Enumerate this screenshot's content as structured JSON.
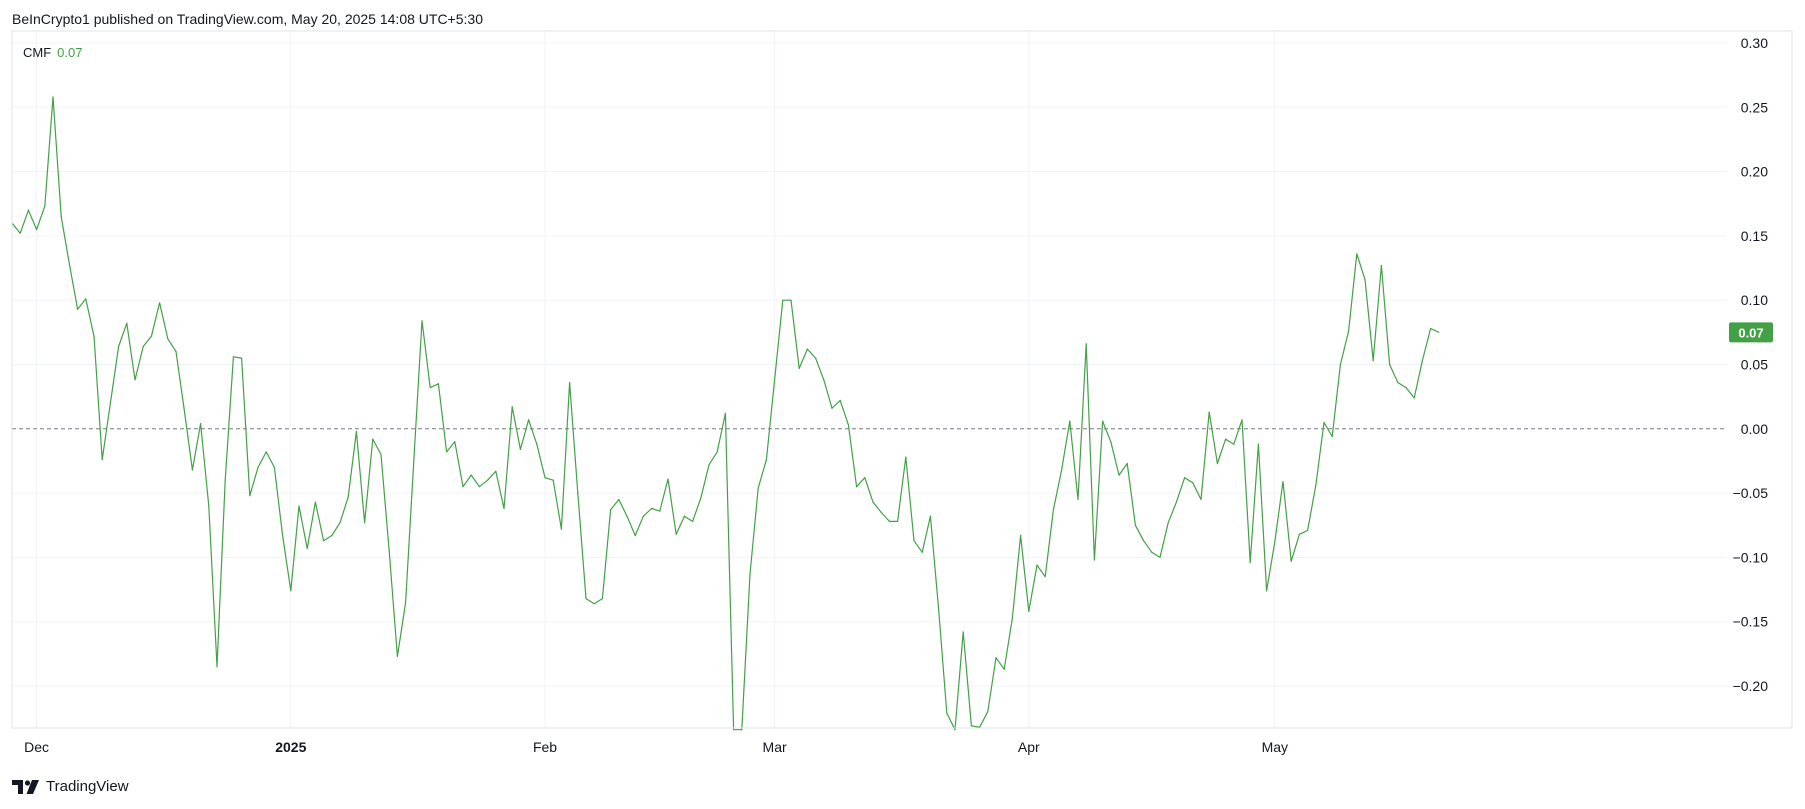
{
  "header": {
    "published_text": "BeInCrypto1 published on TradingView.com, May 20, 2025 14:08 UTC+5:30"
  },
  "legend": {
    "indicator_name": "CMF",
    "indicator_value": "0.07"
  },
  "footer": {
    "brand": "TradingView",
    "logo_icon": "tradingview-logo-icon"
  },
  "colors": {
    "series": "#43a047",
    "badge_bg": "#43a047",
    "grid": "#f0f3fa",
    "zero_line": "#787b86",
    "axis_text": "#131722"
  },
  "chart_data": {
    "type": "line",
    "title": "",
    "xlabel": "",
    "ylabel": "",
    "ylim": [
      -0.234,
      0.3
    ],
    "y_ticks": [
      "0.30",
      "0.25",
      "0.20",
      "0.15",
      "0.10",
      "0.05",
      "0.00",
      "−0.05",
      "−0.10",
      "−0.15",
      "−0.20"
    ],
    "y_tick_values": [
      0.3,
      0.25,
      0.2,
      0.15,
      0.1,
      0.05,
      0.0,
      -0.05,
      -0.1,
      -0.15,
      -0.2
    ],
    "x_ticks": [
      {
        "label": "Dec",
        "date": "2024-12-01",
        "bold": false
      },
      {
        "label": "2025",
        "date": "2025-01-01",
        "bold": true
      },
      {
        "label": "Feb",
        "date": "2025-02-01",
        "bold": false
      },
      {
        "label": "Mar",
        "date": "2025-03-01",
        "bold": false
      },
      {
        "label": "Apr",
        "date": "2025-04-01",
        "bold": false
      },
      {
        "label": "May",
        "date": "2025-05-01",
        "bold": false
      }
    ],
    "reference_line": 0,
    "grid": true,
    "last_value_label": "0.07",
    "series": [
      {
        "name": "CMF",
        "start_date": "2024-11-28",
        "values": [
          0.16,
          0.152,
          0.17,
          0.155,
          0.173,
          0.258,
          0.165,
          0.128,
          0.093,
          0.101,
          0.072,
          -0.024,
          0.02,
          0.064,
          0.082,
          0.038,
          0.064,
          0.072,
          0.098,
          0.07,
          0.06,
          0.015,
          -0.032,
          0.004,
          -0.06,
          -0.185,
          -0.04,
          0.056,
          0.055,
          -0.052,
          -0.03,
          -0.018,
          -0.03,
          -0.083,
          -0.126,
          -0.06,
          -0.093,
          -0.057,
          -0.087,
          -0.083,
          -0.073,
          -0.053,
          -0.002,
          -0.073,
          -0.008,
          -0.02,
          -0.095,
          -0.177,
          -0.135,
          -0.025,
          0.084,
          0.032,
          0.035,
          -0.018,
          -0.01,
          -0.045,
          -0.036,
          -0.045,
          -0.04,
          -0.033,
          -0.062,
          0.017,
          -0.016,
          0.007,
          -0.012,
          -0.038,
          -0.04,
          -0.078,
          0.036,
          -0.05,
          -0.132,
          -0.136,
          -0.132,
          -0.063,
          -0.055,
          -0.068,
          -0.083,
          -0.068,
          -0.062,
          -0.064,
          -0.039,
          -0.082,
          -0.068,
          -0.072,
          -0.054,
          -0.028,
          -0.018,
          0.012,
          -0.234,
          -0.234,
          -0.113,
          -0.046,
          -0.024,
          0.038,
          0.1,
          0.1,
          0.047,
          0.062,
          0.055,
          0.038,
          0.016,
          0.022,
          0.003,
          -0.045,
          -0.038,
          -0.057,
          -0.065,
          -0.072,
          -0.072,
          -0.022,
          -0.087,
          -0.096,
          -0.068,
          -0.14,
          -0.221,
          -0.234,
          -0.158,
          -0.231,
          -0.232,
          -0.22,
          -0.178,
          -0.187,
          -0.147,
          -0.083,
          -0.142,
          -0.106,
          -0.115,
          -0.063,
          -0.032,
          0.006,
          -0.055,
          0.066,
          -0.102,
          0.006,
          -0.01,
          -0.036,
          -0.027,
          -0.075,
          -0.087,
          -0.096,
          -0.1,
          -0.073,
          -0.057,
          -0.038,
          -0.042,
          -0.055,
          0.013,
          -0.027,
          -0.008,
          -0.012,
          0.007,
          -0.104,
          -0.012,
          -0.126,
          -0.088,
          -0.041,
          -0.103,
          -0.082,
          -0.079,
          -0.044,
          0.005,
          -0.006,
          0.05,
          0.076,
          0.136,
          0.116,
          0.053,
          0.127,
          0.05,
          0.036,
          0.032,
          0.024,
          0.053,
          0.078,
          0.075
        ]
      }
    ]
  }
}
